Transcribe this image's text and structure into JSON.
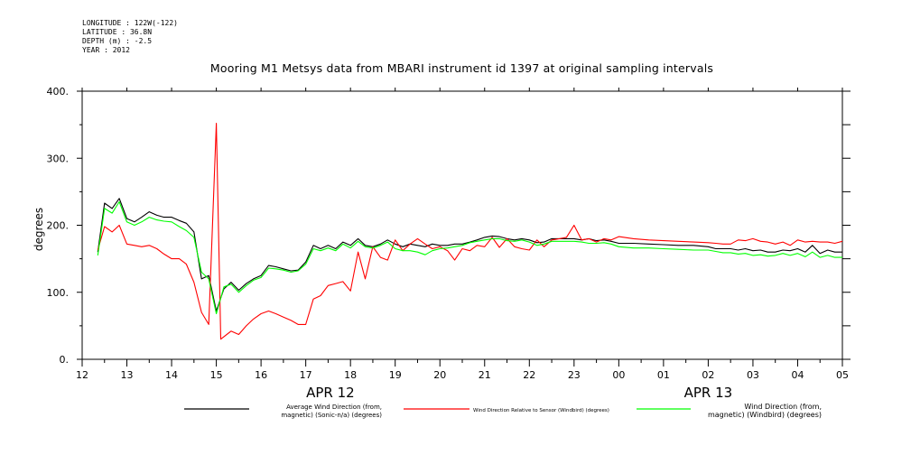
{
  "header": {
    "longitude": "LONGITUDE : 122W(-122)",
    "latitude": "LATITUDE : 36.8N",
    "depth": "DEPTH (m) : -2.5",
    "year": "YEAR : 2012"
  },
  "chart_data": {
    "type": "line",
    "title": "Mooring M1 Metsys data from MBARI instrument id 1397 at original sampling intervals",
    "ylabel": "degrees",
    "xlabel": "",
    "ylim": [
      0,
      400
    ],
    "xlim_hours": [
      12,
      29
    ],
    "y_ticks": [
      {
        "v": 0,
        "label": "0."
      },
      {
        "v": 100,
        "label": "100."
      },
      {
        "v": 200,
        "label": "200."
      },
      {
        "v": 300,
        "label": "300."
      },
      {
        "v": 400,
        "label": "400."
      }
    ],
    "x_ticks": [
      {
        "h": 12,
        "label": "12"
      },
      {
        "h": 13,
        "label": "13"
      },
      {
        "h": 14,
        "label": "14"
      },
      {
        "h": 15,
        "label": "15"
      },
      {
        "h": 16,
        "label": "16"
      },
      {
        "h": 17,
        "label": "17"
      },
      {
        "h": 18,
        "label": "18"
      },
      {
        "h": 19,
        "label": "19"
      },
      {
        "h": 20,
        "label": "20"
      },
      {
        "h": 21,
        "label": "21"
      },
      {
        "h": 22,
        "label": "22"
      },
      {
        "h": 23,
        "label": "23"
      },
      {
        "h": 24,
        "label": "00"
      },
      {
        "h": 25,
        "label": "01"
      },
      {
        "h": 26,
        "label": "02"
      },
      {
        "h": 27,
        "label": "03"
      },
      {
        "h": 28,
        "label": "04"
      },
      {
        "h": 29,
        "label": "05"
      }
    ],
    "date_labels": [
      {
        "h": 17.55,
        "label": "APR 12"
      },
      {
        "h": 26.0,
        "label": "APR 13"
      }
    ],
    "grid": false,
    "legend_position": "bottom",
    "series": [
      {
        "name_lines": [
          "Average Wind Direction (from,",
          "magnetic) (Sonic-n/a) (degrees)"
        ],
        "color": "#000000",
        "x": [
          12.35,
          12.5,
          12.67,
          12.83,
          13.0,
          13.17,
          13.33,
          13.5,
          13.67,
          13.83,
          14.0,
          14.17,
          14.33,
          14.5,
          14.67,
          14.83,
          15.0,
          15.17,
          15.33,
          15.5,
          15.67,
          15.83,
          16.0,
          16.17,
          16.33,
          16.5,
          16.67,
          16.83,
          17.0,
          17.17,
          17.33,
          17.5,
          17.67,
          17.83,
          18.0,
          18.17,
          18.33,
          18.5,
          18.67,
          18.83,
          19.0,
          19.17,
          19.33,
          19.5,
          19.67,
          19.83,
          20.0,
          20.17,
          20.33,
          20.5,
          20.67,
          20.83,
          21.0,
          21.17,
          21.33,
          21.5,
          21.67,
          21.83,
          22.0,
          22.17,
          22.33,
          22.5,
          22.67,
          22.83,
          23.0,
          23.17,
          23.33,
          23.5,
          23.67,
          23.83,
          24.0,
          24.33,
          24.67,
          25.0,
          25.33,
          25.67,
          26.0,
          26.17,
          26.33,
          26.5,
          26.67,
          26.83,
          27.0,
          27.17,
          27.33,
          27.5,
          27.67,
          27.83,
          28.0,
          28.17,
          28.33,
          28.5,
          28.67,
          28.83,
          29.0
        ],
        "y": [
          160,
          233,
          225,
          240,
          210,
          205,
          212,
          220,
          215,
          212,
          212,
          207,
          203,
          190,
          120,
          125,
          72,
          105,
          115,
          103,
          113,
          120,
          125,
          140,
          138,
          135,
          132,
          133,
          145,
          170,
          165,
          170,
          165,
          175,
          170,
          180,
          170,
          168,
          172,
          178,
          172,
          168,
          172,
          170,
          168,
          172,
          170,
          170,
          172,
          172,
          175,
          178,
          182,
          184,
          183,
          180,
          178,
          180,
          178,
          174,
          175,
          180,
          180,
          180,
          180,
          178,
          180,
          177,
          178,
          176,
          173,
          173,
          172,
          171,
          170,
          170,
          168,
          165,
          165,
          165,
          163,
          165,
          162,
          163,
          160,
          160,
          163,
          162,
          165,
          160,
          170,
          158,
          163,
          160,
          160
        ]
      },
      {
        "name_lines": [
          "Wind Direction Relative to Sensor (Windbird) (degrees)"
        ],
        "color": "#ff0000",
        "x": [
          12.35,
          12.5,
          12.67,
          12.83,
          13.0,
          13.17,
          13.33,
          13.5,
          13.67,
          13.83,
          14.0,
          14.17,
          14.33,
          14.5,
          14.67,
          14.83,
          15.0,
          15.1,
          15.33,
          15.5,
          15.67,
          15.83,
          16.0,
          16.17,
          16.33,
          16.5,
          16.67,
          16.83,
          17.0,
          17.17,
          17.33,
          17.5,
          17.67,
          17.83,
          18.0,
          18.17,
          18.33,
          18.5,
          18.67,
          18.83,
          19.0,
          19.17,
          19.33,
          19.5,
          19.67,
          19.83,
          20.0,
          20.17,
          20.33,
          20.5,
          20.67,
          20.83,
          21.0,
          21.17,
          21.33,
          21.5,
          21.67,
          21.83,
          22.0,
          22.17,
          22.33,
          22.5,
          22.67,
          22.83,
          23.0,
          23.17,
          23.33,
          23.5,
          23.67,
          23.83,
          24.0,
          24.33,
          24.67,
          25.0,
          25.33,
          25.67,
          26.0,
          26.17,
          26.33,
          26.5,
          26.67,
          26.83,
          27.0,
          27.17,
          27.33,
          27.5,
          27.67,
          27.83,
          28.0,
          28.17,
          28.33,
          28.5,
          28.67,
          28.83,
          29.0
        ],
        "y": [
          163,
          198,
          190,
          200,
          172,
          170,
          168,
          170,
          165,
          157,
          150,
          150,
          142,
          115,
          70,
          52,
          352,
          30,
          42,
          37,
          50,
          60,
          68,
          72,
          68,
          63,
          58,
          52,
          52,
          90,
          95,
          110,
          113,
          116,
          102,
          160,
          120,
          168,
          152,
          148,
          178,
          162,
          172,
          180,
          172,
          165,
          168,
          162,
          148,
          165,
          162,
          170,
          168,
          182,
          167,
          180,
          168,
          165,
          163,
          178,
          168,
          178,
          180,
          182,
          200,
          178,
          180,
          175,
          180,
          178,
          183,
          180,
          178,
          177,
          176,
          175,
          174,
          173,
          172,
          172,
          178,
          177,
          180,
          176,
          175,
          172,
          175,
          170,
          178,
          175,
          176,
          175,
          175,
          173,
          176
        ]
      },
      {
        "name_lines": [
          "Wind Direction (from,",
          "magnetic) (Windbird) (degrees)"
        ],
        "color": "#00ff00",
        "x": [
          12.35,
          12.5,
          12.67,
          12.83,
          13.0,
          13.17,
          13.33,
          13.5,
          13.67,
          13.83,
          14.0,
          14.17,
          14.33,
          14.5,
          14.67,
          14.83,
          15.0,
          15.17,
          15.33,
          15.5,
          15.67,
          15.83,
          16.0,
          16.17,
          16.33,
          16.5,
          16.67,
          16.83,
          17.0,
          17.17,
          17.33,
          17.5,
          17.67,
          17.83,
          18.0,
          18.17,
          18.33,
          18.5,
          18.67,
          18.83,
          19.0,
          19.17,
          19.33,
          19.5,
          19.67,
          19.83,
          20.0,
          20.17,
          20.33,
          20.5,
          20.67,
          20.83,
          21.0,
          21.17,
          21.33,
          21.5,
          21.67,
          21.83,
          22.0,
          22.17,
          22.33,
          22.5,
          22.67,
          22.83,
          23.0,
          23.17,
          23.33,
          23.5,
          23.67,
          23.83,
          24.0,
          24.33,
          24.67,
          25.0,
          25.33,
          25.67,
          26.0,
          26.17,
          26.33,
          26.5,
          26.67,
          26.83,
          27.0,
          27.17,
          27.33,
          27.5,
          27.67,
          27.83,
          28.0,
          28.17,
          28.33,
          28.5,
          28.67,
          28.83,
          29.0
        ],
        "y": [
          155,
          225,
          218,
          235,
          205,
          200,
          205,
          212,
          208,
          206,
          205,
          198,
          192,
          182,
          130,
          120,
          68,
          108,
          112,
          100,
          110,
          118,
          122,
          136,
          135,
          133,
          130,
          132,
          142,
          165,
          162,
          166,
          162,
          172,
          166,
          176,
          168,
          166,
          170,
          175,
          165,
          162,
          162,
          160,
          156,
          162,
          165,
          166,
          168,
          170,
          174,
          176,
          178,
          180,
          180,
          177,
          176,
          178,
          175,
          170,
          172,
          176,
          176,
          176,
          176,
          175,
          173,
          173,
          174,
          172,
          168,
          166,
          166,
          165,
          164,
          163,
          163,
          161,
          159,
          159,
          157,
          158,
          155,
          156,
          154,
          155,
          158,
          155,
          158,
          153,
          160,
          152,
          155,
          152,
          152
        ]
      }
    ]
  }
}
